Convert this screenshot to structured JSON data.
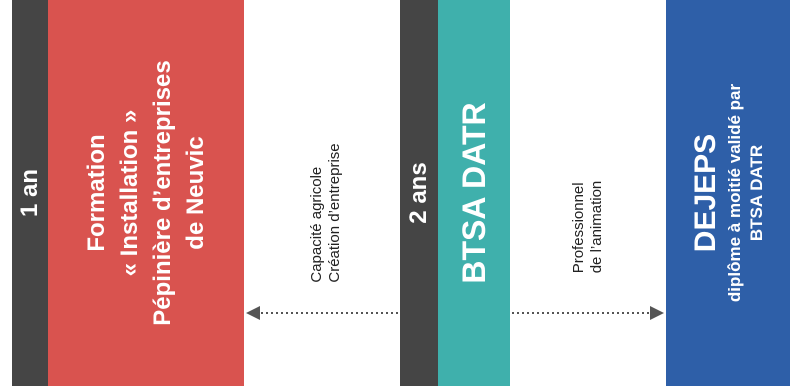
{
  "colors": {
    "duration_bar": "#454545",
    "formation_block": "#d9534f",
    "btsa_block": "#3fb0ac",
    "dejeps_block": "#2e5fa8",
    "arrow": "#555555"
  },
  "left_track": {
    "duration": "1 an",
    "block": {
      "line1": "Formation",
      "line2": "« Installation »",
      "line3": "Pépinière d’entreprises",
      "line4": "de Neuvic"
    },
    "note": {
      "line1": "Capacité agricole",
      "line2": "Création d’entreprise"
    }
  },
  "middle_track": {
    "duration": "2 ans",
    "block": {
      "label": "BTSA DATR"
    },
    "note": {
      "line1": "Professionnel",
      "line2": "de l’animation"
    }
  },
  "right_track": {
    "block": {
      "line1": "DEJEPS",
      "line2": "diplôme à moitié validé par",
      "line3": "BTSA DATR"
    }
  }
}
